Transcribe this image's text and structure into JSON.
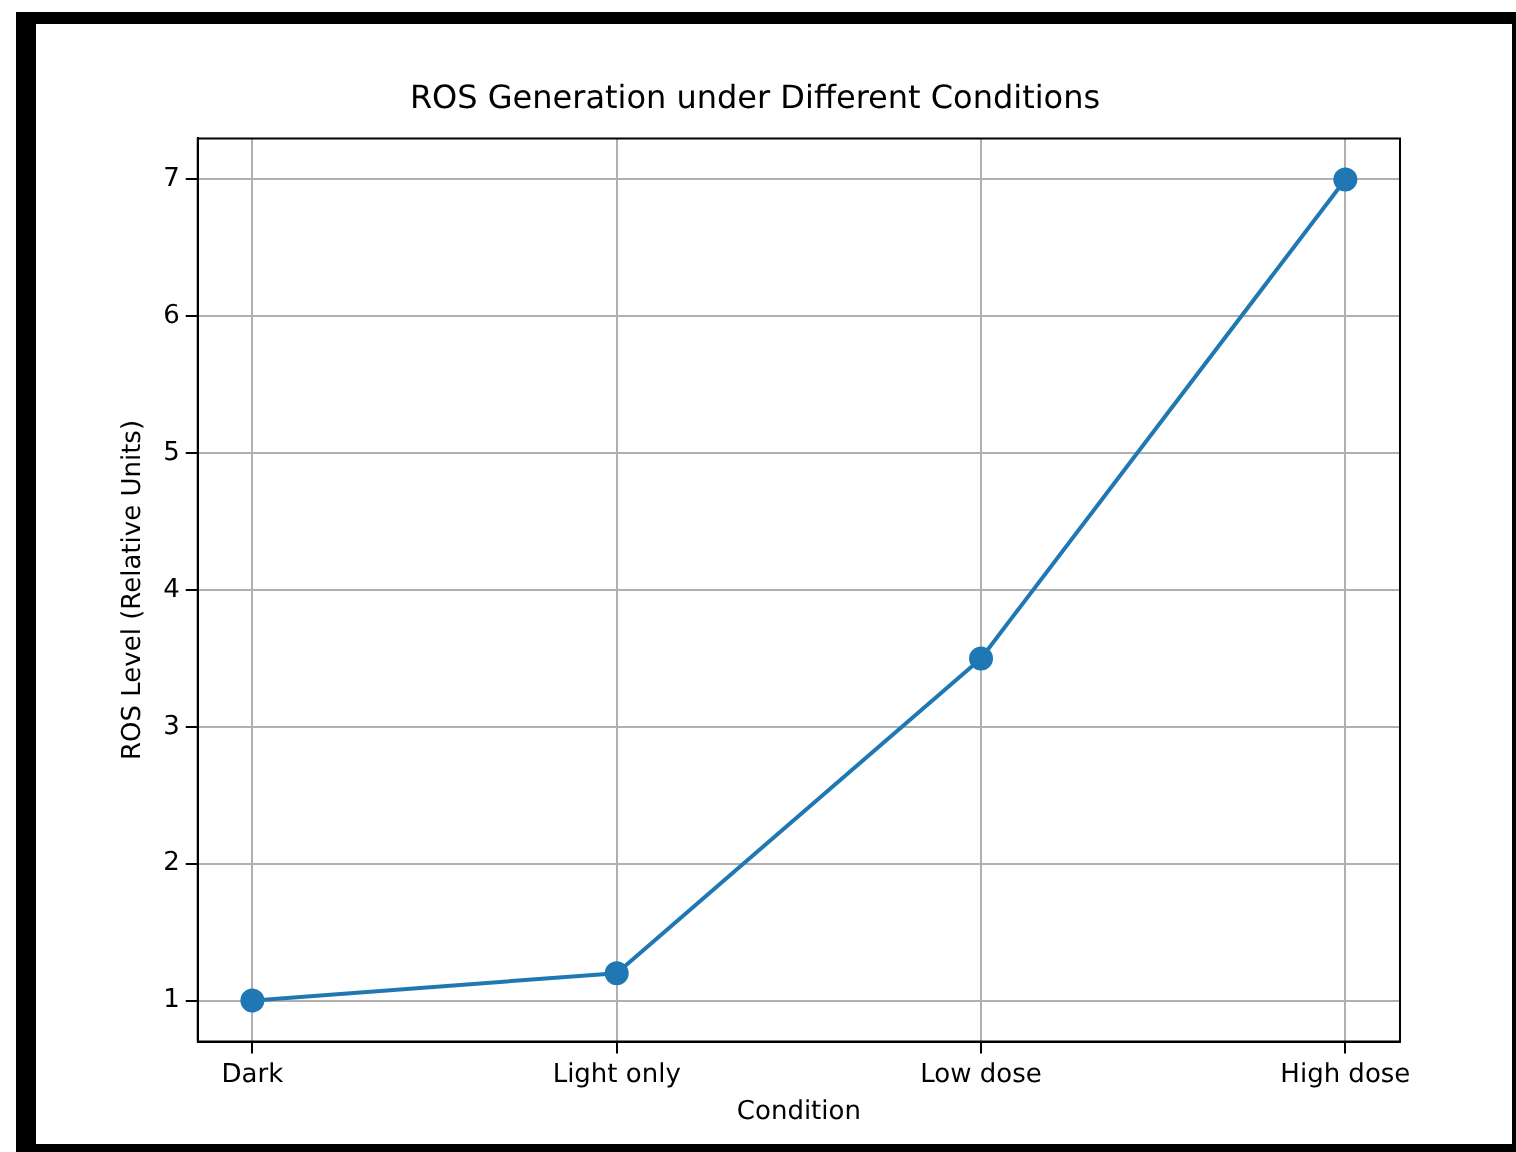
{
  "chart_data": {
    "type": "line",
    "title": "ROS Generation under Different Conditions",
    "xlabel": "Condition",
    "ylabel": "ROS Level (Relative Units)",
    "categories": [
      "Dark",
      "Light only",
      "Low dose",
      "High dose"
    ],
    "series": [
      {
        "color": "#1f77b4",
        "values": [
          1,
          1.2,
          3.5,
          7
        ]
      }
    ],
    "ylim": [
      0.7,
      7.3
    ],
    "yticks": [
      1,
      2,
      3,
      4,
      5,
      6,
      7
    ],
    "grid": true,
    "marker": "circle",
    "legend": false
  }
}
